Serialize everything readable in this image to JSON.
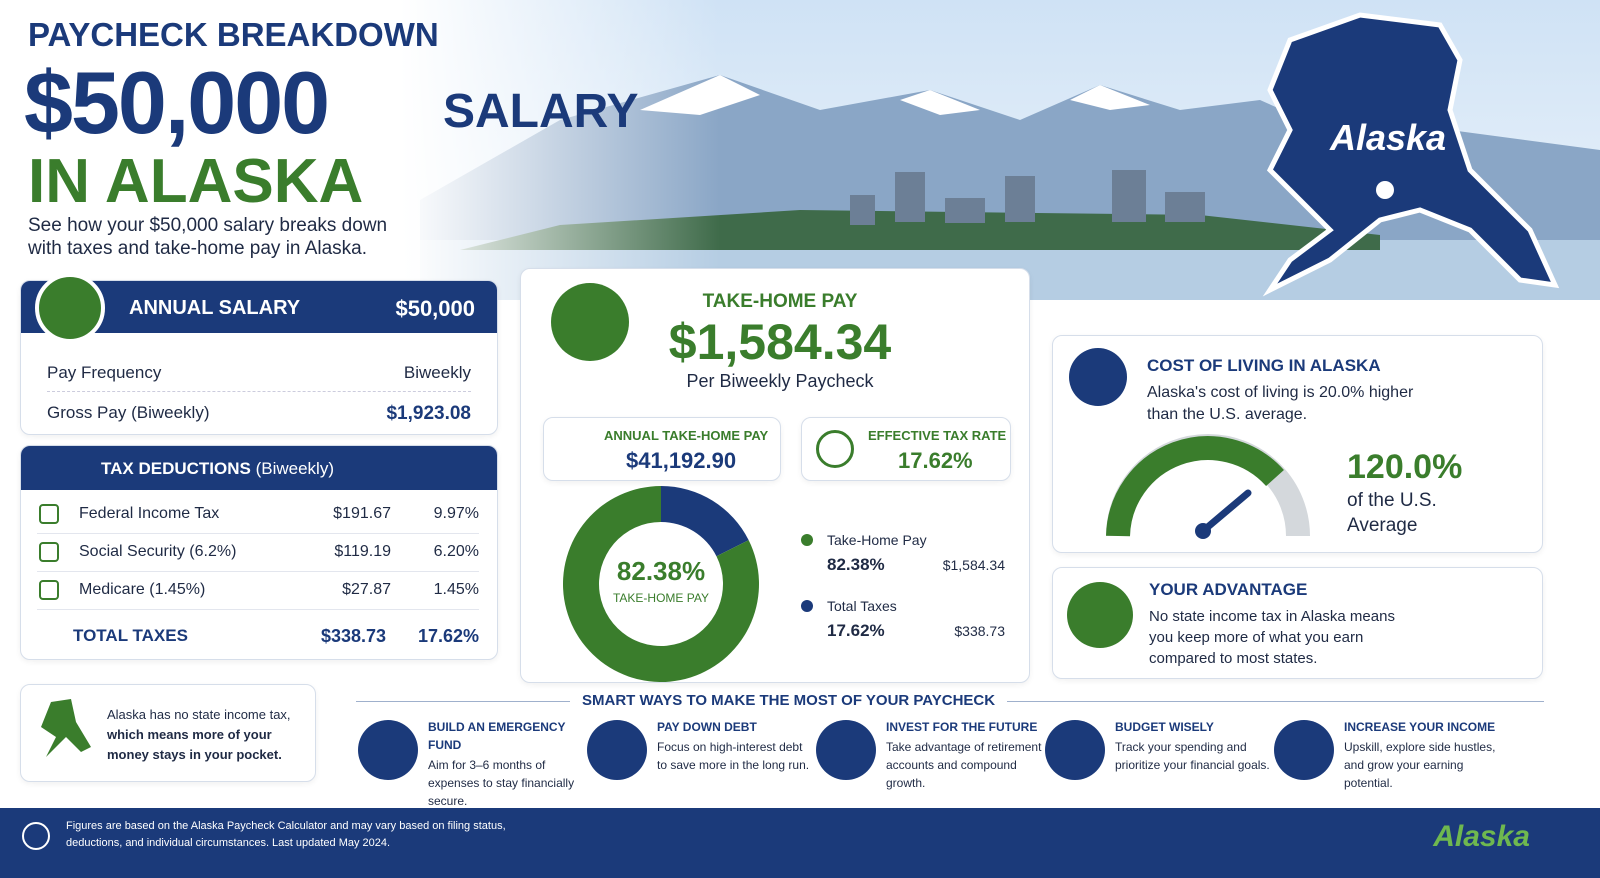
{
  "header": {
    "kicker": "PAYCHECK BREAKDOWN",
    "amount": "$50,000",
    "amount_suffix": "SALARY",
    "location": "IN ALASKA",
    "description": "See how your $50,000 salary breaks down with taxes and take-home pay in Alaska.",
    "map_label": "Alaska"
  },
  "salary_card": {
    "title": "ANNUAL SALARY",
    "value": "$50,000",
    "rows": [
      [
        "Pay Frequency",
        "Biweekly"
      ],
      [
        "Gross Pay (Biweekly)",
        "$1,923.08"
      ]
    ]
  },
  "tax_card": {
    "title": "TAX DEDUCTIONS",
    "title_note": "(Biweekly)",
    "rows": [
      [
        "Federal Income Tax",
        "$191.67",
        "9.97%"
      ],
      [
        "Social Security (6.2%)",
        "$119.19",
        "6.20%"
      ],
      [
        "Medicare (1.45%)",
        "$27.87",
        "1.45%"
      ]
    ],
    "total": [
      "TOTAL TAXES",
      "$338.73",
      "17.62%"
    ]
  },
  "note": {
    "text": "Alaska has no state income tax,",
    "bold": "which means more of your money stays in your pocket."
  },
  "take_home": {
    "title": "TAKE-HOME PAY",
    "amount": "$1,584.34",
    "subtitle": "Per Biweekly Paycheck",
    "annual_label": "ANNUAL TAKE-HOME PAY",
    "annual_value": "$41,192.90",
    "rate_label": "EFFECTIVE TAX RATE",
    "rate_value": "17.62%"
  },
  "chart_data": {
    "type": "pie",
    "categories": [
      "Take-Home Pay",
      "Total Taxes"
    ],
    "values": [
      82.38,
      17.62
    ],
    "value_labels": [
      "82.38%",
      "17.62%"
    ],
    "colors": [
      "#3a7d2c",
      "#1b3a7a"
    ],
    "amounts": [
      "$1,584.34",
      "$338.73"
    ],
    "center_label": "TAKE-HOME PAY"
  },
  "cost_of_living": {
    "title": "COST OF LIVING IN ALASKA",
    "text": "Alaska's cost of living is 20.0% higher than the U.S. average.",
    "value": "120.0%",
    "caption": "of the U.S. Average"
  },
  "advantage": {
    "title": "YOUR ADVANTAGE",
    "text": "No state income tax in Alaska means you keep more of what you earn compared to most states."
  },
  "tips": {
    "title": "SMART WAYS TO MAKE THE MOST OF YOUR PAYCHECK",
    "items": [
      {
        "title": "BUILD AN EMERGENCY FUND",
        "text": "Aim for 3–6 months of expenses to stay financially secure."
      },
      {
        "title": "PAY DOWN DEBT",
        "text": "Focus on high-interest debt to save more in the long run."
      },
      {
        "title": "INVEST FOR THE FUTURE",
        "text": "Take advantage of retirement accounts and compound growth."
      },
      {
        "title": "BUDGET WISELY",
        "text": "Track your spending and prioritize your financial goals."
      },
      {
        "title": "INCREASE YOUR INCOME",
        "text": "Upskill, explore side hustles, and grow your earning potential."
      }
    ]
  },
  "footer": {
    "text": "Figures are based on the Alaska Paycheck Calculator and may vary based on filing status, deductions, and individual circumstances. Last updated May 2024.",
    "logo": "Alaska"
  }
}
